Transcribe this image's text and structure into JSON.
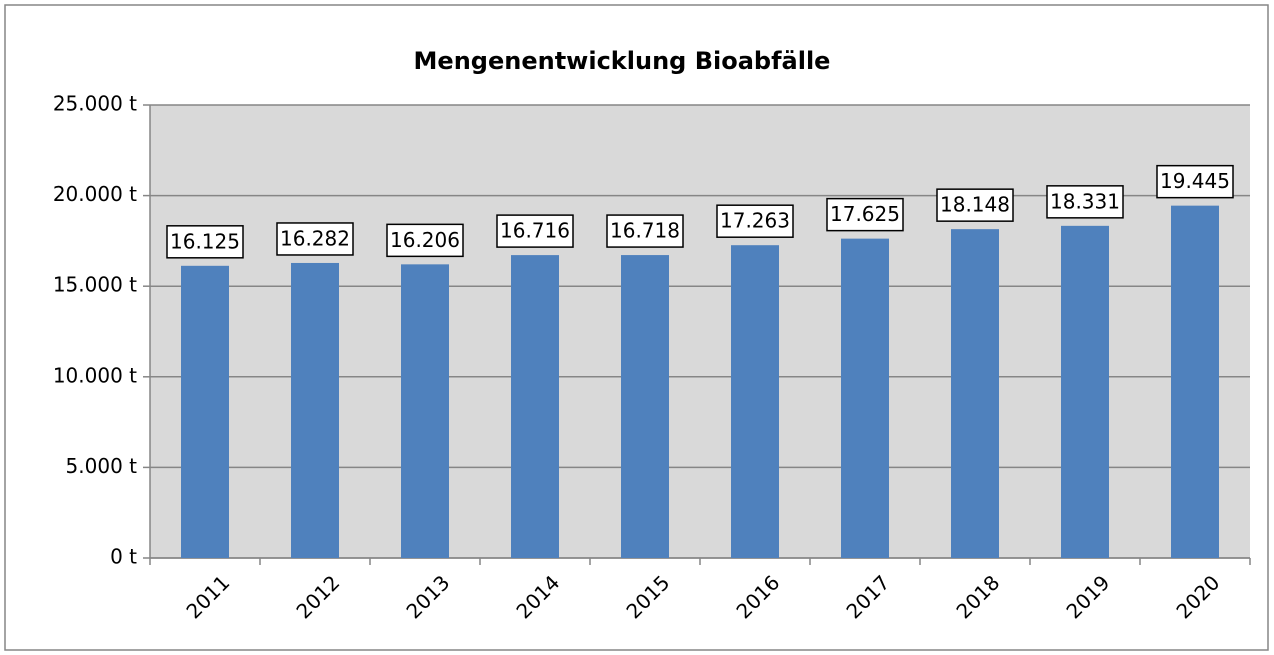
{
  "chart_data": {
    "type": "bar",
    "title": "Mengenentwicklung Bioabfälle",
    "categories": [
      "2011",
      "2012",
      "2013",
      "2014",
      "2015",
      "2016",
      "2017",
      "2018",
      "2019",
      "2020"
    ],
    "values": [
      16125,
      16282,
      16206,
      16716,
      16718,
      17263,
      17625,
      18148,
      18331,
      19445
    ],
    "value_labels": [
      "16.125",
      "16.282",
      "16.206",
      "16.716",
      "16.718",
      "17.263",
      "17.625",
      "18.148",
      "18.331",
      "19.445"
    ],
    "color": "#4f81bd",
    "ylim": [
      0,
      25000
    ],
    "yticks": [
      {
        "value": 0,
        "label": "0 t"
      },
      {
        "value": 5000,
        "label": "5.000 t"
      },
      {
        "value": 10000,
        "label": "10.000 t"
      },
      {
        "value": 15000,
        "label": "15.000 t"
      },
      {
        "value": 20000,
        "label": "20.000 t"
      },
      {
        "value": 25000,
        "label": "25.000 t"
      }
    ],
    "grid": true
  }
}
